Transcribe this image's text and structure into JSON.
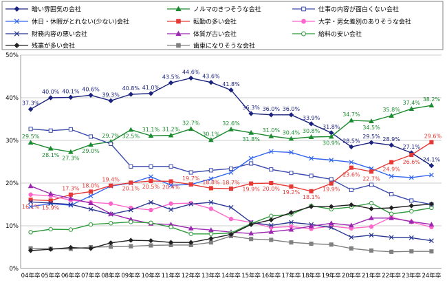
{
  "chart_data": {
    "type": "line",
    "categories": [
      "04年卒",
      "05年卒",
      "06年卒",
      "07年卒",
      "08年卒",
      "09年卒",
      "10年卒",
      "11年卒",
      "12年卒",
      "13年卒",
      "14年卒",
      "15年卒",
      "16年卒",
      "17年卒",
      "18年卒",
      "19年卒",
      "20年卒",
      "21年卒",
      "22年卒",
      "23年卒",
      "24年卒"
    ],
    "ylim": [
      0,
      50
    ],
    "yticks": [
      0,
      10,
      20,
      30,
      40,
      50
    ],
    "ytick_labels": [
      "0%",
      "10%",
      "20%",
      "30%",
      "40%",
      "50%"
    ],
    "grid": true,
    "series": [
      {
        "name": "暗い雰囲気の会社",
        "color": "#1a237e",
        "marker": "diamond",
        "values": [
          37.3,
          40.0,
          40.1,
          40.6,
          39.3,
          40.8,
          41.0,
          43.5,
          44.6,
          43.6,
          41.8,
          36.3,
          36.0,
          36.0,
          33.9,
          31.8,
          28.5,
          29.5,
          28.9,
          27.1,
          24.1
        ],
        "labels": [
          "37.3%",
          "40.0%",
          "40.1%",
          "40.6%",
          "39.3%",
          "40.8%",
          "41.0%",
          "43.5%",
          "44.6%",
          "43.6%",
          "41.8%",
          "36.3%",
          "36.0%",
          "36.0%",
          "33.9%",
          "31.8%",
          "28.5%",
          "29.5%",
          "28.9%",
          "27.1%",
          "24.1%"
        ]
      },
      {
        "name": "ノルマのきつそうな会社",
        "color": "#1b8a2e",
        "marker": "triangle",
        "values": [
          29.5,
          28.1,
          27.3,
          29.0,
          29.7,
          32.5,
          31.1,
          31.2,
          32.7,
          30.1,
          32.6,
          31.8,
          31.0,
          30.4,
          30.8,
          30.9,
          34.7,
          34.5,
          35.8,
          37.4,
          38.2
        ],
        "labels": [
          "29.5%",
          "28.1%",
          "27.3%",
          "29.0%",
          "29.7%",
          "32.5%",
          "31.1%",
          "31.2%",
          "32.7%",
          "30.1%",
          "32.6%",
          "31.8%",
          "31.0%",
          "30.4%",
          "30.8%",
          "30.9%",
          "34.7%",
          "34.5%",
          "35.8%",
          "37.4%",
          "38.2%"
        ]
      },
      {
        "name": "仕事の内容が面白くない会社",
        "color": "#3949ab",
        "marker": "square-open",
        "values": [
          32.7,
          32.3,
          32.6,
          30.9,
          29.2,
          23.9,
          23.9,
          23.9,
          22.5,
          23.0,
          23.4,
          24.6,
          23.2,
          22.4,
          21.7,
          20.9,
          18.4,
          19.6,
          17.4,
          15.9,
          15.0
        ],
        "labels": []
      },
      {
        "name": "休日・休暇がとれない(少ない)会社",
        "color": "#3366ee",
        "marker": "x",
        "values": [
          14.5,
          15.2,
          14.8,
          17.0,
          19.3,
          20.0,
          21.5,
          19.5,
          19.7,
          21.0,
          22.5,
          25.8,
          27.4,
          27.2,
          25.8,
          25.4,
          24.9,
          23.4,
          21.6,
          21.3,
          21.9
        ],
        "labels": []
      },
      {
        "name": "転勤の多い会社",
        "color": "#e53935",
        "marker": "square",
        "values": [
          16.1,
          15.9,
          17.3,
          18.0,
          19.4,
          20.1,
          20.5,
          20.4,
          19.7,
          18.8,
          18.7,
          19.9,
          20.0,
          19.2,
          18.1,
          19.9,
          23.6,
          22.7,
          24.9,
          26.6,
          29.6
        ],
        "labels": [
          "16.1%",
          "15.9%",
          "17.3%",
          "18.0%",
          "19.4%",
          "20.1%",
          "20.5%",
          "20.4%",
          "19.7%",
          "18.8%",
          "18.7%",
          "19.9%",
          "20.0%",
          "19.2%",
          "18.1%",
          "19.9%",
          "23.6%",
          "22.7%",
          "24.9%",
          "26.6%",
          "29.6%"
        ]
      },
      {
        "name": "大学・男女差別のありそうな会社",
        "color": "#ff66cc",
        "marker": "circle",
        "values": [
          17.3,
          17.0,
          16.0,
          15.5,
          15.2,
          14.2,
          13.7,
          15.2,
          15.3,
          14.0,
          11.6,
          10.8,
          9.6,
          9.8,
          9.3,
          9.9,
          9.4,
          9.8,
          12.0,
          10.9,
          9.7
        ],
        "labels": []
      },
      {
        "name": "財務内容の悪い会社",
        "color": "#283593",
        "marker": "x",
        "values": [
          15.6,
          15.3,
          15.0,
          13.9,
          12.7,
          13.7,
          15.5,
          13.8,
          15.1,
          15.5,
          14.3,
          10.8,
          10.1,
          10.8,
          10.3,
          9.6,
          7.3,
          7.8,
          7.3,
          7.2,
          6.5
        ],
        "labels": []
      },
      {
        "name": "体質が古い会社",
        "color": "#9c27b0",
        "marker": "triangle",
        "values": [
          19.3,
          17.5,
          16.4,
          15.3,
          12.8,
          11.5,
          10.5,
          10.3,
          9.4,
          9.0,
          8.5,
          8.2,
          8.6,
          9.1,
          9.9,
          10.6,
          10.1,
          11.8,
          11.8,
          11.0,
          10.3
        ],
        "labels": []
      },
      {
        "name": "給料の安い会社",
        "color": "#2e9b3a",
        "marker": "circle-open",
        "values": [
          8.5,
          9.2,
          9.1,
          10.3,
          10.6,
          10.9,
          10.7,
          9.7,
          8.1,
          8.1,
          8.3,
          10.5,
          12.3,
          12.7,
          14.7,
          13.9,
          14.4,
          15.3,
          12.8,
          13.4,
          14.2
        ],
        "labels": []
      },
      {
        "name": "歯車になりそうな会社",
        "color": "#808080",
        "marker": "square",
        "values": [
          4.7,
          4.6,
          4.6,
          5.0,
          5.1,
          5.2,
          5.4,
          5.5,
          5.5,
          6.1,
          7.6,
          6.9,
          6.7,
          6.1,
          5.8,
          5.6,
          4.7,
          4.2,
          3.9,
          4.0,
          4.0
        ],
        "labels": []
      },
      {
        "name": "残業が多い会社",
        "color": "#222222",
        "marker": "diamond",
        "values": [
          4.2,
          4.5,
          4.9,
          4.7,
          6.0,
          6.6,
          6.5,
          6.1,
          6.1,
          7.0,
          8.0,
          10.3,
          11.4,
          13.1,
          14.5,
          14.5,
          14.9,
          14.0,
          14.2,
          14.7,
          15.1
        ],
        "labels": []
      }
    ],
    "legend": {
      "placement": "top",
      "entries": [
        {
          "series": 0
        },
        {
          "series": 1
        },
        {
          "series": 2
        },
        {
          "series": 3
        },
        {
          "series": 4
        },
        {
          "series": 5
        },
        {
          "series": 6
        },
        {
          "series": 7
        },
        {
          "series": 8
        },
        {
          "series": 10
        },
        {
          "series": 9
        }
      ]
    }
  }
}
